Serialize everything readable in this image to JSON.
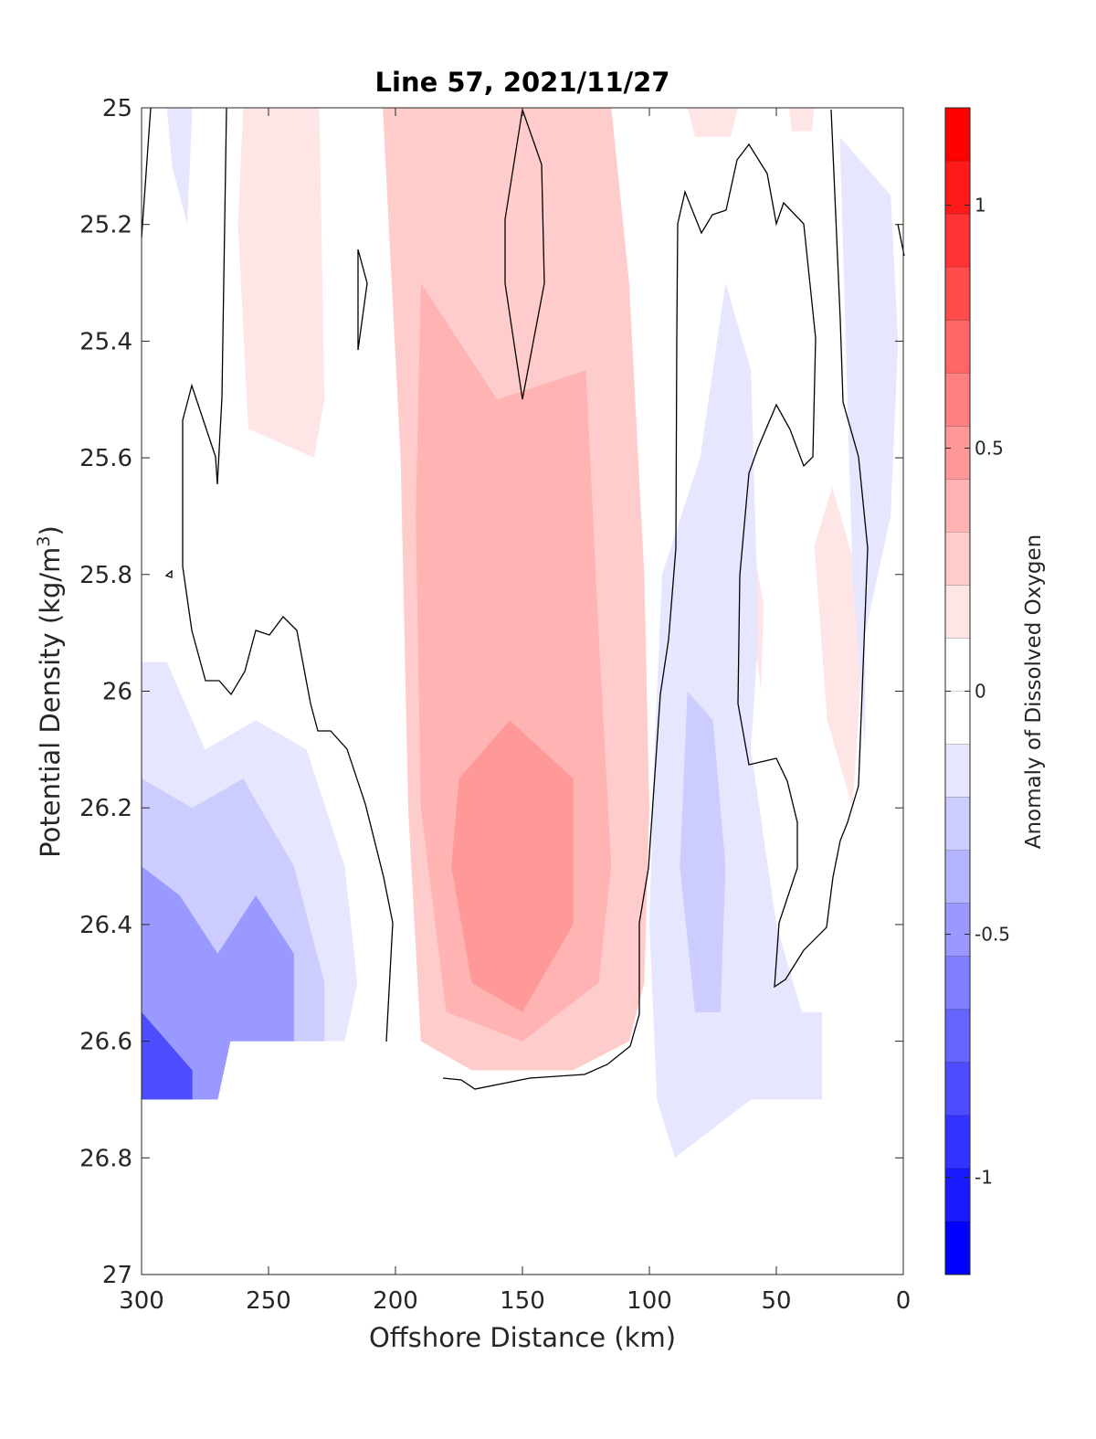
{
  "chart_data": {
    "type": "heatmap",
    "subtype": "filled-contour",
    "title": "Line 57, 2021/11/27",
    "xlabel": "Offshore Distance (km)",
    "ylabel": "Potential Density (kg/m",
    "ylabel_superscript": "3",
    "ylabel_close": ")",
    "xlim": [
      300,
      0
    ],
    "x_reversed": true,
    "ylim": [
      25,
      27
    ],
    "y_reversed": true,
    "x_ticks": [
      300,
      250,
      200,
      150,
      100,
      50,
      0
    ],
    "x_tick_labels": [
      "300",
      "250",
      "200",
      "150",
      "100",
      "50",
      "0"
    ],
    "y_ticks": [
      25,
      25.2,
      25.4,
      25.6,
      25.8,
      26,
      26.2,
      26.4,
      26.6,
      26.8,
      27
    ],
    "y_tick_labels": [
      "25",
      "25.2",
      "25.4",
      "25.6",
      "25.8",
      "26",
      "26.2",
      "26.4",
      "26.6",
      "26.8",
      "27"
    ],
    "grid": false,
    "colorbar": {
      "label": "Anomaly of Dissolved Oxygen",
      "range": [
        -1.2,
        1.2
      ],
      "step": 0.1,
      "ticks": [
        1,
        0.5,
        0,
        -0.5,
        -1
      ],
      "tick_labels": [
        "1",
        "0.5",
        "0",
        "-0.5",
        "-1"
      ],
      "colors_high_to_low": [
        "#ff0000",
        "#ff1a1a",
        "#ff3333",
        "#ff4d4d",
        "#ff6666",
        "#ff8080",
        "#ff9999",
        "#ffb3b3",
        "#ffcccc",
        "#ffe6e6",
        "#ffffff",
        "#ffffff",
        "#e6e6ff",
        "#ccccff",
        "#b3b3ff",
        "#9999ff",
        "#8080ff",
        "#6666ff",
        "#4d4dff",
        "#3333ff",
        "#1a1aff",
        "#0000ff"
      ]
    },
    "contour_line_level": 0,
    "regions": [
      {
        "name": "positive-core",
        "value": 0.25,
        "color": "#ffcccc",
        "points": [
          [
            205,
            25
          ],
          [
            115,
            25
          ],
          [
            108,
            25.3
          ],
          [
            102,
            25.8
          ],
          [
            100,
            26.2
          ],
          [
            102,
            26.5
          ],
          [
            108,
            26.6
          ],
          [
            130,
            26.65
          ],
          [
            170,
            26.65
          ],
          [
            190,
            26.6
          ],
          [
            195,
            26.2
          ],
          [
            198,
            25.6
          ],
          [
            205,
            25
          ]
        ]
      },
      {
        "name": "positive-core-mid",
        "value": 0.35,
        "color": "#ffb3b3",
        "points": [
          [
            190,
            25.3
          ],
          [
            160,
            25.5
          ],
          [
            125,
            25.45
          ],
          [
            120,
            25.9
          ],
          [
            115,
            26.3
          ],
          [
            120,
            26.5
          ],
          [
            150,
            26.6
          ],
          [
            180,
            26.55
          ],
          [
            190,
            26.2
          ],
          [
            192,
            25.7
          ],
          [
            190,
            25.3
          ]
        ]
      },
      {
        "name": "positive-core-inner",
        "value": 0.4,
        "color": "#ff9999",
        "points": [
          [
            175,
            26.15
          ],
          [
            155,
            26.05
          ],
          [
            130,
            26.15
          ],
          [
            130,
            26.4
          ],
          [
            150,
            26.55
          ],
          [
            170,
            26.5
          ],
          [
            178,
            26.3
          ],
          [
            175,
            26.15
          ]
        ]
      },
      {
        "name": "positive-upper-left",
        "value": 0.15,
        "color": "#ffe6e6",
        "points": [
          [
            260,
            25
          ],
          [
            230,
            25
          ],
          [
            228,
            25.5
          ],
          [
            232,
            25.6
          ],
          [
            258,
            25.55
          ],
          [
            262,
            25.2
          ],
          [
            260,
            25
          ]
        ]
      },
      {
        "name": "positive-upper-right-a",
        "value": 0.15,
        "color": "#ffe6e6",
        "points": [
          [
            85,
            25
          ],
          [
            65,
            25
          ],
          [
            68,
            25.05
          ],
          [
            82,
            25.05
          ],
          [
            85,
            25
          ]
        ]
      },
      {
        "name": "positive-upper-right-b",
        "value": 0.15,
        "color": "#ffe6e6",
        "points": [
          [
            45,
            25
          ],
          [
            35,
            25
          ],
          [
            36,
            25.04
          ],
          [
            44,
            25.04
          ],
          [
            45,
            25
          ]
        ]
      },
      {
        "name": "positive-right-lobe",
        "value": 0.15,
        "color": "#ffe6e6",
        "points": [
          [
            28,
            25.65
          ],
          [
            18,
            25.8
          ],
          [
            17,
            26.0
          ],
          [
            20,
            26.2
          ],
          [
            30,
            26.05
          ],
          [
            35,
            25.75
          ],
          [
            28,
            25.65
          ]
        ]
      },
      {
        "name": "positive-right-sliver",
        "value": 0.15,
        "color": "#ffe6e6",
        "points": [
          [
            58,
            25.78
          ],
          [
            55,
            25.85
          ],
          [
            56,
            26.0
          ],
          [
            59,
            25.9
          ],
          [
            58,
            25.78
          ]
        ]
      },
      {
        "name": "negative-left-outer",
        "value": -0.15,
        "color": "#e6e6ff",
        "points": [
          [
            300,
            25.95
          ],
          [
            290,
            25.95
          ],
          [
            275,
            26.1
          ],
          [
            255,
            26.05
          ],
          [
            235,
            26.1
          ],
          [
            220,
            26.3
          ],
          [
            215,
            26.5
          ],
          [
            220,
            26.6
          ],
          [
            265,
            26.6
          ],
          [
            270,
            26.7
          ],
          [
            300,
            26.7
          ],
          [
            300,
            25.95
          ]
        ]
      },
      {
        "name": "negative-left-mid",
        "value": -0.3,
        "color": "#ccccff",
        "points": [
          [
            300,
            26.15
          ],
          [
            280,
            26.2
          ],
          [
            260,
            26.15
          ],
          [
            240,
            26.3
          ],
          [
            228,
            26.5
          ],
          [
            228,
            26.6
          ],
          [
            265,
            26.6
          ],
          [
            270,
            26.7
          ],
          [
            300,
            26.7
          ],
          [
            300,
            26.15
          ]
        ]
      },
      {
        "name": "negative-left-deep",
        "value": -0.5,
        "color": "#9999ff",
        "points": [
          [
            300,
            26.3
          ],
          [
            285,
            26.35
          ],
          [
            270,
            26.45
          ],
          [
            255,
            26.35
          ],
          [
            240,
            26.45
          ],
          [
            240,
            26.6
          ],
          [
            265,
            26.6
          ],
          [
            270,
            26.7
          ],
          [
            300,
            26.7
          ],
          [
            300,
            26.3
          ]
        ]
      },
      {
        "name": "negative-left-core",
        "value": -0.8,
        "color": "#4d4dff",
        "points": [
          [
            300,
            26.55
          ],
          [
            290,
            26.6
          ],
          [
            280,
            26.65
          ],
          [
            280,
            26.7
          ],
          [
            300,
            26.7
          ],
          [
            300,
            26.55
          ]
        ]
      },
      {
        "name": "negative-upper-left",
        "value": -0.15,
        "color": "#e6e6ff",
        "points": [
          [
            290,
            25
          ],
          [
            280,
            25
          ],
          [
            282,
            25.2
          ],
          [
            288,
            25.1
          ],
          [
            290,
            25
          ]
        ]
      },
      {
        "name": "negative-right-band",
        "value": -0.15,
        "color": "#e6e6ff",
        "points": [
          [
            95,
            25.8
          ],
          [
            80,
            25.6
          ],
          [
            70,
            25.3
          ],
          [
            60,
            25.45
          ],
          [
            57,
            25.9
          ],
          [
            60,
            26.1
          ],
          [
            50,
            26.4
          ],
          [
            40,
            26.55
          ],
          [
            32,
            26.55
          ],
          [
            32,
            26.7
          ],
          [
            60,
            26.7
          ],
          [
            90,
            26.8
          ],
          [
            97,
            26.7
          ],
          [
            100,
            26.4
          ],
          [
            98,
            26.1
          ],
          [
            95,
            25.8
          ]
        ]
      },
      {
        "name": "negative-right-inner",
        "value": -0.3,
        "color": "#ccccff",
        "points": [
          [
            85,
            26.0
          ],
          [
            75,
            26.05
          ],
          [
            70,
            26.3
          ],
          [
            72,
            26.55
          ],
          [
            82,
            26.55
          ],
          [
            88,
            26.3
          ],
          [
            85,
            26.0
          ]
        ]
      },
      {
        "name": "negative-far-right",
        "value": -0.15,
        "color": "#e6e6ff",
        "points": [
          [
            25,
            25.05
          ],
          [
            5,
            25.15
          ],
          [
            2,
            25.4
          ],
          [
            5,
            25.7
          ],
          [
            15,
            25.9
          ],
          [
            15,
            26.1
          ],
          [
            20,
            25.8
          ],
          [
            25,
            25.05
          ]
        ]
      }
    ]
  }
}
